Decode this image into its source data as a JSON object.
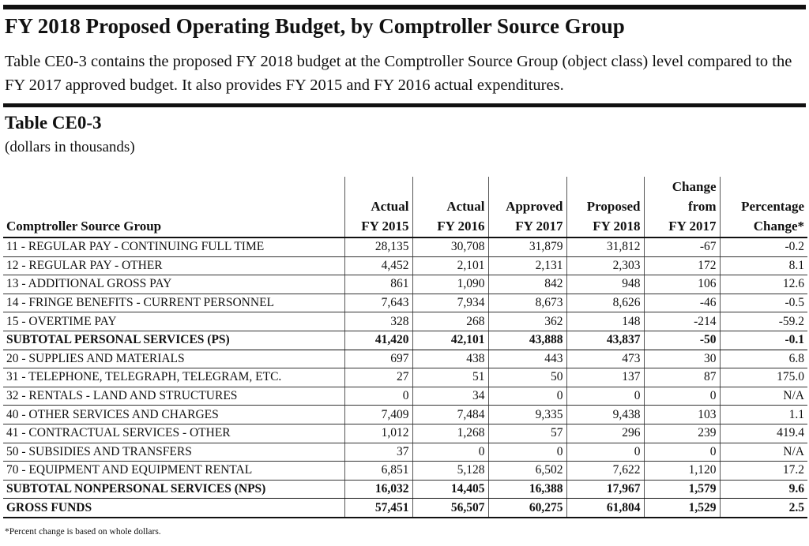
{
  "title": "FY 2018 Proposed Operating Budget, by Comptroller Source Group",
  "intro": "Table CE0-3 contains the proposed FY 2018 budget at the Comptroller Source Group (object class) level compared to the FY 2017 approved budget. It also provides FY 2015 and FY 2016 actual expenditures.",
  "table_title": "Table CE0-3",
  "table_subtitle": "(dollars in thousands)",
  "columns": [
    {
      "line1": "",
      "line2": "",
      "line3": "Comptroller Source Group"
    },
    {
      "line1": "",
      "line2": "Actual",
      "line3": "FY 2015"
    },
    {
      "line1": "",
      "line2": "Actual",
      "line3": "FY 2016"
    },
    {
      "line1": "",
      "line2": "Approved",
      "line3": "FY 2017"
    },
    {
      "line1": "",
      "line2": "Proposed",
      "line3": "FY 2018"
    },
    {
      "line1": "Change",
      "line2": "from",
      "line3": "FY 2017"
    },
    {
      "line1": "",
      "line2": "Percentage",
      "line3": "Change*"
    }
  ],
  "rows": [
    {
      "label": "11 - REGULAR PAY - CONTINUING FULL TIME",
      "v": [
        "28,135",
        "30,708",
        "31,879",
        "31,812",
        "-67",
        "-0.2"
      ]
    },
    {
      "label": "12 - REGULAR PAY - OTHER",
      "v": [
        "4,452",
        "2,101",
        "2,131",
        "2,303",
        "172",
        "8.1"
      ]
    },
    {
      "label": "13 - ADDITIONAL GROSS PAY",
      "v": [
        "861",
        "1,090",
        "842",
        "948",
        "106",
        "12.6"
      ]
    },
    {
      "label": "14 - FRINGE BENEFITS - CURRENT PERSONNEL",
      "v": [
        "7,643",
        "7,934",
        "8,673",
        "8,626",
        "-46",
        "-0.5"
      ]
    },
    {
      "label": "15 - OVERTIME PAY",
      "v": [
        "328",
        "268",
        "362",
        "148",
        "-214",
        "-59.2"
      ]
    },
    {
      "label": "SUBTOTAL PERSONAL SERVICES (PS)",
      "v": [
        "41,420",
        "42,101",
        "43,888",
        "43,837",
        "-50",
        "-0.1"
      ]
    },
    {
      "label": "20 - SUPPLIES AND MATERIALS",
      "v": [
        "697",
        "438",
        "443",
        "473",
        "30",
        "6.8"
      ]
    },
    {
      "label": "31 - TELEPHONE, TELEGRAPH, TELEGRAM, ETC.",
      "v": [
        "27",
        "51",
        "50",
        "137",
        "87",
        "175.0"
      ]
    },
    {
      "label": "32 - RENTALS - LAND AND STRUCTURES",
      "v": [
        "0",
        "34",
        "0",
        "0",
        "0",
        "N/A"
      ]
    },
    {
      "label": "40 - OTHER SERVICES AND CHARGES",
      "v": [
        "7,409",
        "7,484",
        "9,335",
        "9,438",
        "103",
        "1.1"
      ]
    },
    {
      "label": "41 - CONTRACTUAL SERVICES - OTHER",
      "v": [
        "1,012",
        "1,268",
        "57",
        "296",
        "239",
        "419.4"
      ]
    },
    {
      "label": "50 - SUBSIDIES AND TRANSFERS",
      "v": [
        "37",
        "0",
        "0",
        "0",
        "0",
        "N/A"
      ]
    },
    {
      "label": "70 - EQUIPMENT AND EQUIPMENT RENTAL",
      "v": [
        "6,851",
        "5,128",
        "6,502",
        "7,622",
        "1,120",
        "17.2"
      ]
    },
    {
      "label": "SUBTOTAL NONPERSONAL SERVICES (NPS)",
      "v": [
        "16,032",
        "14,405",
        "16,388",
        "17,967",
        "1,579",
        "9.6"
      ]
    },
    {
      "label": "GROSS FUNDS",
      "v": [
        "57,451",
        "56,507",
        "60,275",
        "61,804",
        "1,529",
        "2.5"
      ]
    }
  ],
  "footnote": "*Percent change is based on whole dollars."
}
